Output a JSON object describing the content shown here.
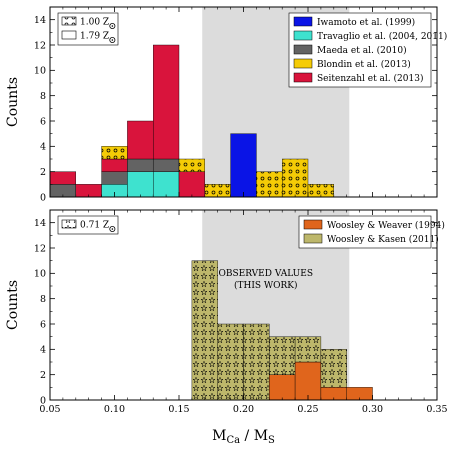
{
  "colors": {
    "iwamoto": "#0a14e6",
    "travaglio": "#3ee2cf",
    "maeda": "#636363",
    "blondin": "#f5cc06",
    "seitenzahl": "#d9143c",
    "woosley_weaver": "#e0651c",
    "woosley_kasen": "#bdb76b",
    "observed_band": "#dcdcdc"
  },
  "chart_data": [
    {
      "type": "bar",
      "panel": "top",
      "xlim": [
        0.05,
        0.35
      ],
      "ylim": [
        0,
        15
      ],
      "yticks": [
        0,
        2,
        4,
        6,
        8,
        10,
        12,
        14
      ],
      "ylabel": "Counts",
      "observed_range": [
        0.168,
        0.282
      ],
      "metallicity_legend": {
        "placement": "top-left",
        "entries": [
          {
            "label": "1.00 Z⊙",
            "style": "dotted"
          },
          {
            "label": "1.79 Z⊙",
            "style": "plain"
          }
        ]
      },
      "legend": {
        "placement": "top-right",
        "entries": [
          {
            "key": "iwamoto",
            "label": "Iwamoto et al. (1999)"
          },
          {
            "key": "travaglio",
            "label": "Travaglio et al. (2004, 2011)"
          },
          {
            "key": "maeda",
            "label": "Maeda et al. (2010)"
          },
          {
            "key": "blondin",
            "label": "Blondin et al. (2013)"
          },
          {
            "key": "seitenzahl",
            "label": "Seitenzahl et al. (2013)"
          }
        ]
      },
      "bars": [
        {
          "x0": 0.05,
          "x1": 0.07,
          "segments": [
            {
              "series": "maeda",
              "count": 1
            },
            {
              "series": "seitenzahl",
              "count": 1
            }
          ]
        },
        {
          "x0": 0.07,
          "x1": 0.09,
          "segments": [
            {
              "series": "seitenzahl",
              "count": 1
            }
          ]
        },
        {
          "x0": 0.09,
          "x1": 0.11,
          "segments": [
            {
              "series": "travaglio",
              "count": 1
            },
            {
              "series": "maeda",
              "count": 1
            },
            {
              "series": "seitenzahl",
              "count": 1
            },
            {
              "series": "blondin",
              "count": 1,
              "pattern": "dots"
            }
          ]
        },
        {
          "x0": 0.11,
          "x1": 0.13,
          "segments": [
            {
              "series": "travaglio",
              "count": 2
            },
            {
              "series": "maeda",
              "count": 1
            },
            {
              "series": "seitenzahl",
              "count": 3
            }
          ]
        },
        {
          "x0": 0.13,
          "x1": 0.15,
          "segments": [
            {
              "series": "travaglio",
              "count": 2
            },
            {
              "series": "maeda",
              "count": 1
            },
            {
              "series": "seitenzahl",
              "count": 9
            }
          ]
        },
        {
          "x0": 0.15,
          "x1": 0.17,
          "segments": [
            {
              "series": "seitenzahl",
              "count": 2
            },
            {
              "series": "blondin",
              "count": 1,
              "pattern": "dots"
            }
          ]
        },
        {
          "x0": 0.17,
          "x1": 0.19,
          "segments": [
            {
              "series": "blondin",
              "count": 1,
              "pattern": "dots"
            }
          ]
        },
        {
          "x0": 0.19,
          "x1": 0.21,
          "segments": [
            {
              "series": "iwamoto",
              "count": 5
            }
          ]
        },
        {
          "x0": 0.21,
          "x1": 0.23,
          "segments": [
            {
              "series": "blondin",
              "count": 2,
              "pattern": "dots"
            }
          ]
        },
        {
          "x0": 0.23,
          "x1": 0.25,
          "segments": [
            {
              "series": "blondin",
              "count": 3,
              "pattern": "dots"
            }
          ]
        },
        {
          "x0": 0.25,
          "x1": 0.27,
          "segments": [
            {
              "series": "blondin",
              "count": 1,
              "pattern": "dots"
            }
          ]
        }
      ]
    },
    {
      "type": "bar",
      "panel": "bottom",
      "xlim": [
        0.05,
        0.35
      ],
      "ylim": [
        0,
        15
      ],
      "xticks": [
        0.05,
        0.1,
        0.15,
        0.2,
        0.25,
        0.3,
        0.35
      ],
      "xtick_labels": [
        "0.05",
        "0.10",
        "0.15",
        "0.20",
        "0.25",
        "0.30",
        "0.35"
      ],
      "yticks": [
        0,
        2,
        4,
        6,
        8,
        10,
        12,
        14
      ],
      "ylabel": "Counts",
      "xlabel_main": "M",
      "xlabel_sub1": "Ca",
      "xlabel_sep": " / M",
      "xlabel_sub2": "S",
      "observed_range": [
        0.168,
        0.282
      ],
      "annotation": [
        "OBSERVED VALUES",
        "(THIS WORK)"
      ],
      "metallicity_legend": {
        "placement": "top-left",
        "entries": [
          {
            "label": "0.71 Z⊙",
            "style": "stars"
          }
        ]
      },
      "legend": {
        "placement": "top-right",
        "entries": [
          {
            "key": "woosley_weaver",
            "label": "Woosley & Weaver (1994)"
          },
          {
            "key": "woosley_kasen",
            "label": "Woosley & Kasen (2011)"
          }
        ]
      },
      "bars": [
        {
          "x0": 0.16,
          "x1": 0.18,
          "segments": [
            {
              "series": "woosley_kasen",
              "count": 11,
              "pattern": "stars"
            }
          ]
        },
        {
          "x0": 0.18,
          "x1": 0.2,
          "segments": [
            {
              "series": "woosley_kasen",
              "count": 6,
              "pattern": "stars"
            }
          ]
        },
        {
          "x0": 0.2,
          "x1": 0.22,
          "segments": [
            {
              "series": "woosley_kasen",
              "count": 6,
              "pattern": "stars"
            }
          ]
        },
        {
          "x0": 0.22,
          "x1": 0.24,
          "segments": [
            {
              "series": "woosley_weaver",
              "count": 2
            },
            {
              "series": "woosley_kasen",
              "count": 3,
              "pattern": "stars"
            }
          ]
        },
        {
          "x0": 0.24,
          "x1": 0.26,
          "segments": [
            {
              "series": "woosley_weaver",
              "count": 3
            },
            {
              "series": "woosley_kasen",
              "count": 2,
              "pattern": "stars"
            }
          ]
        },
        {
          "x0": 0.26,
          "x1": 0.28,
          "segments": [
            {
              "series": "woosley_weaver",
              "count": 1
            },
            {
              "series": "woosley_kasen",
              "count": 3,
              "pattern": "stars"
            }
          ]
        },
        {
          "x0": 0.28,
          "x1": 0.3,
          "segments": [
            {
              "series": "woosley_weaver",
              "count": 1
            }
          ]
        }
      ]
    }
  ]
}
